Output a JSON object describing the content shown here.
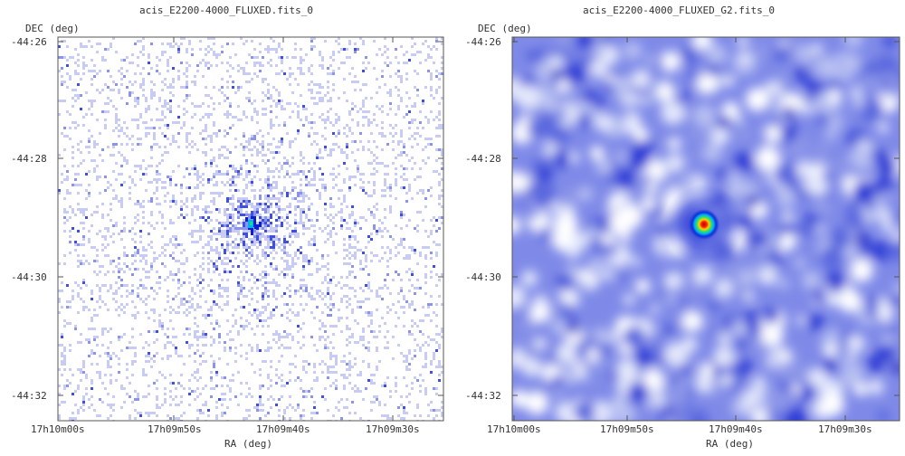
{
  "panels": [
    {
      "title": "acis_E2200-4000_FLUXED.fits_0",
      "y_axis_label": "DEC (deg)",
      "x_axis_label": "RA (deg)",
      "y_ticks": [
        "-44:26",
        "-44:28",
        "-44:30",
        "-44:32"
      ],
      "x_ticks": [
        "17h10m00s",
        "17h09m50s",
        "17h09m40s",
        "17h09m30s"
      ],
      "style": "raw-counts"
    },
    {
      "title": "acis_E2200-4000_FLUXED_G2.fits_0",
      "y_axis_label": "DEC (deg)",
      "x_axis_label": "RA (deg)",
      "y_ticks": [
        "-44:26",
        "-44:28",
        "-44:30",
        "-44:32"
      ],
      "x_ticks": [
        "17h10m00s",
        "17h09m50s",
        "17h09m40s",
        "17h09m30s"
      ],
      "style": "smoothed"
    }
  ],
  "colormap": [
    "#ffffff",
    "#c8ccf4",
    "#8a94ea",
    "#3f4fe0",
    "#0a1fd0",
    "#00b0ff",
    "#20e060",
    "#ffe000",
    "#ff4000",
    "#c00000"
  ]
}
